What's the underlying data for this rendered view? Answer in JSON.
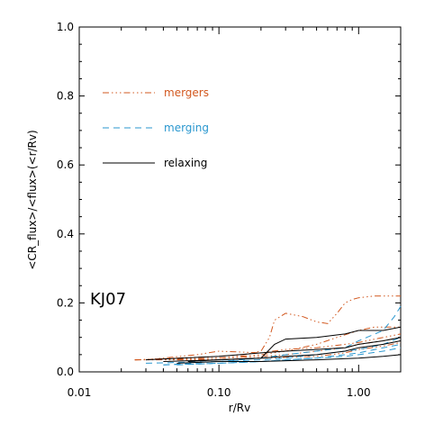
{
  "chart_data": {
    "type": "line",
    "title": "",
    "xlabel": "r/Rv",
    "ylabel": "<CR_flux>/<flux>(<r/Rv)",
    "xscale": "log",
    "xlim": [
      0.01,
      2.0
    ],
    "ylim": [
      0.0,
      1.0
    ],
    "x_ticks": [
      0.01,
      0.1,
      1.0
    ],
    "x_tick_labels": [
      "0.01",
      "0.10",
      "1.00"
    ],
    "y_ticks": [
      0.0,
      0.2,
      0.4,
      0.6,
      0.8,
      1.0
    ],
    "y_tick_labels": [
      "0.0",
      "0.2",
      "0.4",
      "0.6",
      "0.8",
      "1.0"
    ],
    "grid": false,
    "legend_position": "upper-left",
    "annotation": "KJ07",
    "legend": [
      {
        "label": "mergers",
        "group": "mergers"
      },
      {
        "label": "merging",
        "group": "merging"
      },
      {
        "label": "relaxing",
        "group": "relaxing"
      }
    ],
    "groups": {
      "mergers": {
        "color": "#d2581f",
        "dash": "7,3,1.5,3,1.5,3,1.5,3"
      },
      "merging": {
        "color": "#2a97cf",
        "dash": "7,5"
      },
      "relaxing": {
        "color": "#000000",
        "dash": ""
      }
    },
    "series": [
      {
        "group": "mergers",
        "x": [
          0.025,
          0.05,
          0.1,
          0.15,
          0.2,
          0.23,
          0.25,
          0.3,
          0.4,
          0.5,
          0.6,
          0.7,
          0.8,
          0.9,
          1.0,
          1.3,
          1.6,
          2.0
        ],
        "y": [
          0.035,
          0.04,
          0.045,
          0.05,
          0.06,
          0.1,
          0.15,
          0.17,
          0.16,
          0.145,
          0.14,
          0.17,
          0.2,
          0.21,
          0.215,
          0.22,
          0.22,
          0.22
        ]
      },
      {
        "group": "mergers",
        "x": [
          0.025,
          0.06,
          0.1,
          0.2,
          0.3,
          0.5,
          0.7,
          1.0,
          1.3,
          2.0
        ],
        "y": [
          0.035,
          0.036,
          0.04,
          0.05,
          0.06,
          0.08,
          0.1,
          0.12,
          0.13,
          0.13
        ]
      },
      {
        "group": "mergers",
        "x": [
          0.03,
          0.07,
          0.1,
          0.2,
          0.3,
          0.5,
          0.8,
          1.0,
          1.5,
          2.0
        ],
        "y": [
          0.035,
          0.05,
          0.06,
          0.055,
          0.065,
          0.07,
          0.08,
          0.085,
          0.1,
          0.11
        ]
      },
      {
        "group": "mergers",
        "x": [
          0.025,
          0.1,
          0.2,
          0.3,
          0.5,
          0.8,
          1.0,
          1.5,
          2.0
        ],
        "y": [
          0.035,
          0.04,
          0.045,
          0.05,
          0.06,
          0.07,
          0.08,
          0.09,
          0.1
        ]
      },
      {
        "group": "mergers",
        "x": [
          0.025,
          0.1,
          0.2,
          0.5,
          0.8,
          1.0,
          1.5,
          2.0
        ],
        "y": [
          0.035,
          0.035,
          0.04,
          0.045,
          0.055,
          0.065,
          0.075,
          0.085
        ]
      },
      {
        "group": "merging",
        "x": [
          0.04,
          0.1,
          0.2,
          0.3,
          0.5,
          0.8,
          1.0,
          1.5,
          1.8,
          2.0
        ],
        "y": [
          0.02,
          0.03,
          0.04,
          0.05,
          0.06,
          0.07,
          0.09,
          0.12,
          0.16,
          0.19
        ]
      },
      {
        "group": "merging",
        "x": [
          0.03,
          0.1,
          0.2,
          0.3,
          0.5,
          0.8,
          1.0,
          1.5,
          2.0
        ],
        "y": [
          0.025,
          0.03,
          0.035,
          0.04,
          0.05,
          0.06,
          0.065,
          0.08,
          0.1
        ]
      },
      {
        "group": "merging",
        "x": [
          0.05,
          0.1,
          0.2,
          0.3,
          0.5,
          0.8,
          1.0,
          1.5,
          2.0
        ],
        "y": [
          0.02,
          0.025,
          0.03,
          0.035,
          0.04,
          0.05,
          0.055,
          0.07,
          0.08
        ]
      },
      {
        "group": "merging",
        "x": [
          0.04,
          0.1,
          0.2,
          0.5,
          0.8,
          1.0,
          1.5,
          2.0
        ],
        "y": [
          0.02,
          0.025,
          0.03,
          0.04,
          0.045,
          0.05,
          0.06,
          0.07
        ]
      },
      {
        "group": "relaxing",
        "x": [
          0.06,
          0.1,
          0.2,
          0.25,
          0.3,
          0.5,
          0.8,
          1.0,
          1.5,
          2.0
        ],
        "y": [
          0.03,
          0.035,
          0.04,
          0.08,
          0.095,
          0.1,
          0.11,
          0.12,
          0.12,
          0.13
        ]
      },
      {
        "group": "relaxing",
        "x": [
          0.03,
          0.1,
          0.2,
          0.3,
          0.5,
          0.8,
          1.0,
          1.5,
          2.0
        ],
        "y": [
          0.035,
          0.045,
          0.055,
          0.06,
          0.065,
          0.07,
          0.08,
          0.09,
          0.1
        ]
      },
      {
        "group": "relaxing",
        "x": [
          0.04,
          0.1,
          0.2,
          0.3,
          0.5,
          0.8,
          1.0,
          1.5,
          2.0
        ],
        "y": [
          0.03,
          0.035,
          0.04,
          0.045,
          0.05,
          0.06,
          0.07,
          0.08,
          0.09
        ]
      },
      {
        "group": "relaxing",
        "x": [
          0.05,
          0.1,
          0.2,
          0.5,
          1.0,
          1.5,
          2.0
        ],
        "y": [
          0.025,
          0.03,
          0.03,
          0.035,
          0.04,
          0.045,
          0.05
        ]
      }
    ]
  }
}
